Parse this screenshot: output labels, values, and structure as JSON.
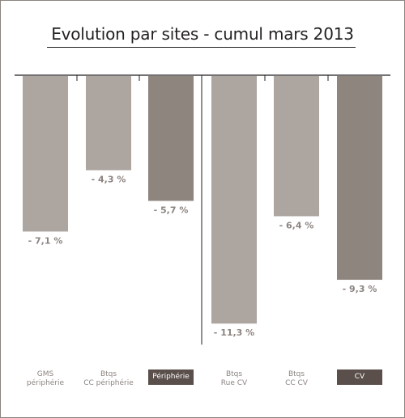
{
  "title": "Evolution par sites - cumul mars 2013",
  "colors": {
    "bar_light": "#aca5a0",
    "bar_dark": "#8e857e",
    "value_label": "#8c8480",
    "axis": "#231f20",
    "highlight_bg": "#5a4f4a",
    "highlight_text": "#ffffff"
  },
  "chart_data": {
    "type": "bar",
    "title": "Evolution par sites - cumul mars 2013",
    "categories": [
      [
        "GMS",
        "périphérie"
      ],
      [
        "Btqs",
        "CC périphérie"
      ],
      [
        "Périphérie"
      ],
      [
        "Btqs",
        "Rue CV"
      ],
      [
        "Btqs",
        "CC CV"
      ],
      [
        "CV"
      ]
    ],
    "values": [
      -7.1,
      -4.3,
      -5.7,
      -11.3,
      -6.4,
      -9.3
    ],
    "value_labels": [
      "- 7,1 %",
      "- 4,3 %",
      "- 5,7 %",
      "- 11,3 %",
      "- 6,4 %",
      "- 9,3 %"
    ],
    "totals": [
      false,
      false,
      true,
      false,
      false,
      true
    ],
    "ylim": [
      -12,
      0
    ],
    "xlabel": "",
    "ylabel": "",
    "grid": false,
    "legend": "none"
  }
}
